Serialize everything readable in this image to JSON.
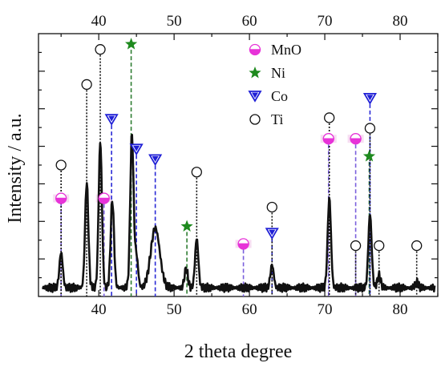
{
  "chart_data": {
    "type": "line",
    "title": "",
    "xlabel": "2 theta degree",
    "ylabel": "Intensity / a.u.",
    "xlim": [
      32,
      85
    ],
    "ylim": [
      0,
      100
    ],
    "x_ticks": [
      40,
      50,
      60,
      70,
      80
    ],
    "x_tick_labels": [
      "40",
      "50",
      "60",
      "70",
      "80"
    ],
    "y_ticks_shown": false,
    "grid": false,
    "legend_position": "top-right",
    "series": [
      {
        "name": "",
        "color": "#111111",
        "peaks": [
          {
            "x": 35.0,
            "h": 20
          },
          {
            "x": 38.4,
            "h": 60
          },
          {
            "x": 40.2,
            "h": 83
          },
          {
            "x": 41.8,
            "h": 50
          },
          {
            "x": 44.4,
            "h": 87
          },
          {
            "x": 45.0,
            "h": 18
          },
          {
            "x": 47.5,
            "h": 34
          },
          {
            "x": 51.6,
            "h": 11
          },
          {
            "x": 53.0,
            "h": 28
          },
          {
            "x": 63.0,
            "h": 13
          },
          {
            "x": 70.6,
            "h": 51
          },
          {
            "x": 76.0,
            "h": 42
          },
          {
            "x": 77.2,
            "h": 7
          },
          {
            "x": 82.2,
            "h": 3
          }
        ],
        "baseline": 5
      }
    ],
    "phases": [
      {
        "name": "MnO",
        "marker": "half-circle",
        "color": "#e733d8",
        "line_color": "#7a5fdc",
        "peaks": [
          {
            "x": 35.0,
            "y": 56
          },
          {
            "x": 40.7,
            "y": 56
          },
          {
            "x": 59.2,
            "y": 30
          },
          {
            "x": 70.5,
            "y": 90
          },
          {
            "x": 74.1,
            "y": 90
          }
        ]
      },
      {
        "name": "Ni",
        "marker": "star",
        "color": "#1e8a1e",
        "line_color": "#2e7d32",
        "peaks": [
          {
            "x": 44.3,
            "y": 144
          },
          {
            "x": 51.7,
            "y": 40
          },
          {
            "x": 75.9,
            "y": 80
          }
        ]
      },
      {
        "name": "Co",
        "marker": "triangle-down",
        "color": "#1f1fd6",
        "line_color": "#2a2ad6",
        "peaks": [
          {
            "x": 41.7,
            "y": 101
          },
          {
            "x": 45.0,
            "y": 84
          },
          {
            "x": 47.5,
            "y": 78
          },
          {
            "x": 63.0,
            "y": 36
          },
          {
            "x": 76.0,
            "y": 113
          }
        ]
      },
      {
        "name": "Ti",
        "marker": "open-circle",
        "color": "#111111",
        "line_color": "#111111",
        "peaks": [
          {
            "x": 35.0,
            "y": 75
          },
          {
            "x": 38.4,
            "y": 121
          },
          {
            "x": 40.2,
            "y": 141
          },
          {
            "x": 53.0,
            "y": 71
          },
          {
            "x": 63.0,
            "y": 51
          },
          {
            "x": 70.6,
            "y": 102
          },
          {
            "x": 74.1,
            "y": 29
          },
          {
            "x": 76.0,
            "y": 96
          },
          {
            "x": 77.2,
            "y": 29
          },
          {
            "x": 82.2,
            "y": 29
          }
        ]
      }
    ]
  }
}
